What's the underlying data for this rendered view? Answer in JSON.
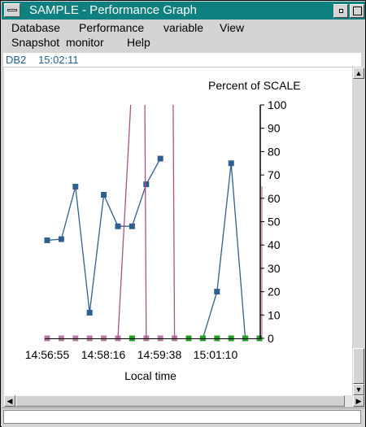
{
  "window": {
    "title": "SAMPLE - Performance Graph"
  },
  "menu": {
    "database": "Database",
    "performance": "Performance",
    "variable": "variable",
    "view": "View",
    "snapshot_monitor": "Snapshot  monitor",
    "help": "Help"
  },
  "status": {
    "database_name": "DB2",
    "time": "15:02:11"
  },
  "chart_data": {
    "type": "line",
    "ylabel": "Percent of SCALE",
    "xlabel": "Local time",
    "ylim": [
      0,
      100
    ],
    "y_ticks": [
      0,
      10,
      20,
      30,
      40,
      50,
      60,
      70,
      80,
      90,
      100
    ],
    "y_tick_labels": [
      "0",
      "10",
      "20",
      "30",
      "40",
      "50",
      "60",
      "70",
      "80",
      "90",
      "100"
    ],
    "x_tick_labels": [
      "14:56:55",
      "14:58:16",
      "14:59:38",
      "15:01:10"
    ],
    "series": [
      {
        "color": "#2f5f90",
        "marker": "square",
        "segments": [
          [
            [
              0,
              42
            ],
            [
              1,
              42.5
            ],
            [
              2,
              65
            ],
            [
              3,
              11
            ],
            [
              4,
              61.5
            ],
            [
              5,
              48
            ],
            [
              6,
              48
            ],
            [
              7,
              66
            ],
            [
              8,
              77
            ]
          ],
          [
            [
              11,
              0
            ],
            [
              12,
              20
            ],
            [
              13,
              75
            ],
            [
              14,
              0
            ]
          ]
        ]
      },
      {
        "color": "#b87aa0",
        "marker": "square",
        "points": [
          [
            0,
            0
          ],
          [
            1,
            0
          ],
          [
            2,
            0
          ],
          [
            3,
            0
          ],
          [
            4,
            0
          ],
          [
            5,
            0
          ],
          [
            7,
            0
          ],
          [
            8,
            0
          ],
          [
            9,
            0
          ]
        ]
      },
      {
        "color": "#23a023",
        "marker": "square",
        "points": [
          [
            6,
            0
          ],
          [
            10,
            0
          ],
          [
            11,
            0
          ],
          [
            12,
            0
          ],
          [
            13,
            0
          ],
          [
            14,
            0
          ],
          [
            15,
            0
          ]
        ]
      },
      {
        "color": "#b0508a",
        "marker": "none",
        "segments": [
          [
            [
              5,
              0
            ],
            [
              5.9,
              100
            ]
          ],
          [
            [
              6.9,
              100
            ],
            [
              7,
              0
            ]
          ],
          [
            [
              8.9,
              100
            ],
            [
              9,
              0
            ]
          ]
        ]
      }
    ]
  }
}
